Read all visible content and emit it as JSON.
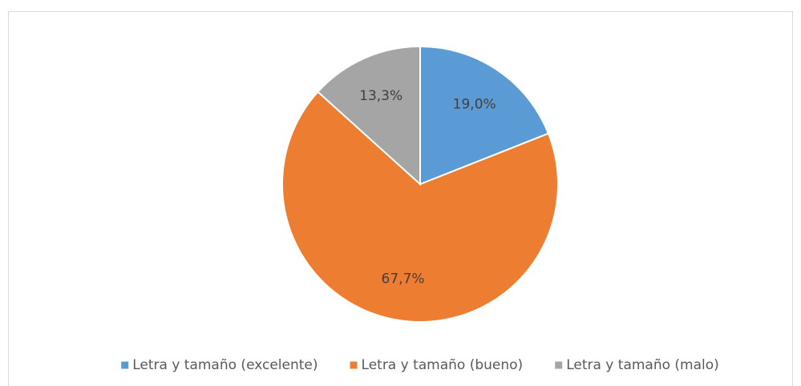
{
  "chart_data": {
    "type": "pie",
    "categories": [
      "Letra y tamaño (excelente)",
      "Letra y tamaño (bueno)",
      "Letra y tamaño (malo)"
    ],
    "values": [
      19.0,
      67.7,
      13.3
    ],
    "value_labels": [
      "19,0%",
      "67,7%",
      "13,3%"
    ],
    "colors": [
      "#5b9bd5",
      "#ed7d31",
      "#a5a5a5"
    ],
    "legend": "bottom"
  }
}
